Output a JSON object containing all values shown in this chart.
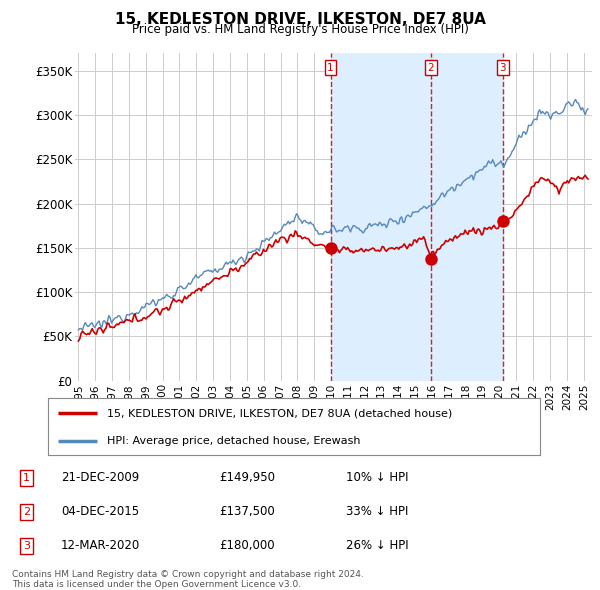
{
  "title": "15, KEDLESTON DRIVE, ILKESTON, DE7 8UA",
  "subtitle": "Price paid vs. HM Land Registry's House Price Index (HPI)",
  "red_label": "15, KEDLESTON DRIVE, ILKESTON, DE7 8UA (detached house)",
  "blue_label": "HPI: Average price, detached house, Erewash",
  "copyright": "Contains HM Land Registry data © Crown copyright and database right 2024.\nThis data is licensed under the Open Government Licence v3.0.",
  "transactions": [
    {
      "num": 1,
      "date": "21-DEC-2009",
      "price": "£149,950",
      "pct": "10% ↓ HPI",
      "x_year": 2009.97,
      "y_val": 149950
    },
    {
      "num": 2,
      "date": "04-DEC-2015",
      "price": "£137,500",
      "pct": "33% ↓ HPI",
      "x_year": 2015.92,
      "y_val": 137500
    },
    {
      "num": 3,
      "date": "12-MAR-2020",
      "price": "£180,000",
      "pct": "26% ↓ HPI",
      "x_year": 2020.2,
      "y_val": 180000
    }
  ],
  "red_color": "#cc0000",
  "blue_color": "#5588bb",
  "shade_color": "#ddeeff",
  "vline_color": "#cc0000",
  "vline2_color": "#aaaaaa",
  "bg_color": "#ffffff",
  "grid_color": "#cccccc",
  "xlim": [
    1994.8,
    2025.5
  ],
  "ylim": [
    0,
    370000
  ],
  "yticks": [
    0,
    50000,
    100000,
    150000,
    200000,
    250000,
    300000,
    350000
  ],
  "ytick_labels": [
    "£0",
    "£50K",
    "£100K",
    "£150K",
    "£200K",
    "£250K",
    "£300K",
    "£350K"
  ],
  "xticks": [
    1995,
    1996,
    1997,
    1998,
    1999,
    2000,
    2001,
    2002,
    2003,
    2004,
    2005,
    2006,
    2007,
    2008,
    2009,
    2010,
    2011,
    2012,
    2013,
    2014,
    2015,
    2016,
    2017,
    2018,
    2019,
    2020,
    2021,
    2022,
    2023,
    2024,
    2025
  ]
}
